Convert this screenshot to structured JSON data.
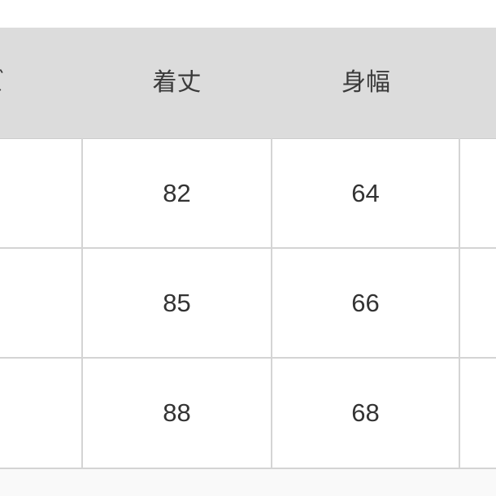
{
  "header": {
    "columns": [
      "ズ",
      "着丈",
      "身幅",
      ""
    ]
  },
  "rows": [
    {
      "cells": [
        "",
        "82",
        "64",
        ""
      ]
    },
    {
      "cells": [
        "",
        "85",
        "66",
        ""
      ]
    },
    {
      "cells": [
        "",
        "88",
        "68",
        ""
      ]
    }
  ],
  "colors": {
    "header_bg": "#dcdcdc",
    "grid": "#d4d4d4"
  }
}
